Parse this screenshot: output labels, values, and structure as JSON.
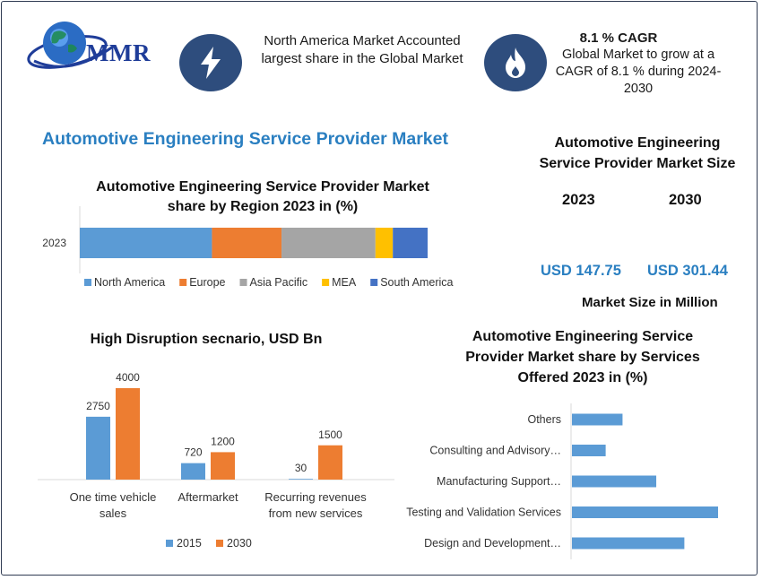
{
  "header": {
    "logo_text": "MMR",
    "north_america_text": "North America Market Accounted largest share in the Global Market",
    "cagr_title": "8.1 % CAGR",
    "cagr_text": "Global Market to grow at a CAGR of 8.1 % during 2024-2030",
    "colors": {
      "icon_circle": "#2e4d7d",
      "title_blue": "#2a7fc1"
    },
    "icons": [
      "globe-icon",
      "lightning-icon",
      "flame-icon"
    ]
  },
  "page_title": "Automotive Engineering Service Provider Market",
  "market_size": {
    "title": "Automotive Engineering Service Provider Market Size",
    "years": [
      "2023",
      "2030"
    ],
    "values": [
      "USD 147.75",
      "USD 301.44"
    ],
    "note": "Market Size in Million"
  },
  "chart_data": [
    {
      "type": "bar",
      "orientation": "horizontal-stacked",
      "title": "Automotive Engineering Service Provider Market share by Region 2023 in (%)",
      "categories": [
        "2023"
      ],
      "series": [
        {
          "name": "North America",
          "values": [
            38
          ],
          "color": "#5b9bd5"
        },
        {
          "name": "Europe",
          "values": [
            20
          ],
          "color": "#ed7d31"
        },
        {
          "name": "Asia Pacific",
          "values": [
            27
          ],
          "color": "#a5a5a5"
        },
        {
          "name": "MEA",
          "values": [
            5
          ],
          "color": "#ffc000"
        },
        {
          "name": "South America",
          "values": [
            10
          ],
          "color": "#4472c4"
        }
      ],
      "legend": "bottom"
    },
    {
      "type": "bar",
      "orientation": "vertical-grouped",
      "title": "High Disruption secnario, USD Bn",
      "categories": [
        "One time vehicle sales",
        "Aftermarket",
        "Recurring revenues from new services"
      ],
      "series": [
        {
          "name": "2015",
          "values": [
            2750,
            720,
            30
          ],
          "color": "#5b9bd5"
        },
        {
          "name": "2030",
          "values": [
            4000,
            1200,
            1500
          ],
          "color": "#ed7d31"
        }
      ],
      "ylim": [
        0,
        4000
      ],
      "legend": "bottom"
    },
    {
      "type": "bar",
      "orientation": "horizontal",
      "title": "Automotive Engineering Service Provider Market share by Services Offered 2023 in (%)",
      "categories": [
        "Others",
        "Consulting and Advisory…",
        "Manufacturing Support…",
        "Testing and Validation Services",
        "Design and Development…"
      ],
      "values": [
        9,
        6,
        15,
        26,
        20
      ],
      "xlim": [
        0,
        26
      ],
      "color": "#5b9bd5"
    }
  ]
}
